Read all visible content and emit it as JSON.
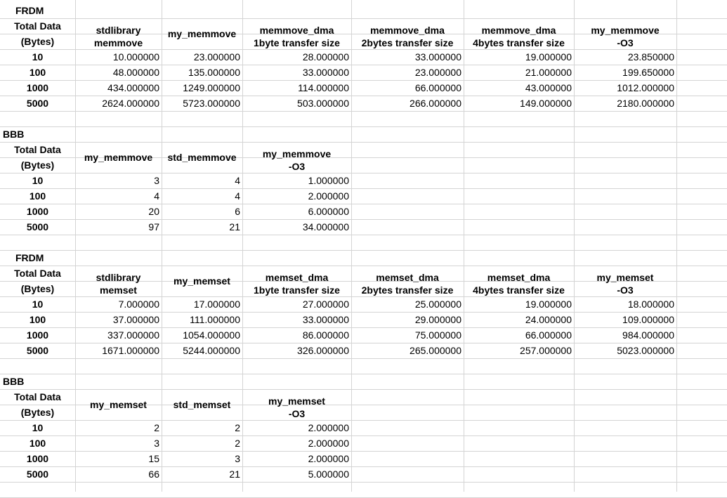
{
  "spreadsheet": {
    "blocks": [
      {
        "label": "FRDM",
        "total_header": [
          "Total Data",
          "(Bytes)"
        ],
        "columns": [
          [
            "stdlibrary",
            "memmove"
          ],
          [
            "my_memmove"
          ],
          [
            "memmove_dma",
            "1byte transfer size"
          ],
          [
            "memmove_dma",
            "2bytes transfer size"
          ],
          [
            "memmove_dma",
            "4bytes transfer size"
          ],
          [
            "my_memmove",
            "-O3"
          ]
        ],
        "rows": [
          {
            "size": "10",
            "values": [
              "10.000000",
              "23.000000",
              "28.000000",
              "33.000000",
              "19.000000",
              "23.850000"
            ]
          },
          {
            "size": "100",
            "values": [
              "48.000000",
              "135.000000",
              "33.000000",
              "23.000000",
              "21.000000",
              "199.650000"
            ]
          },
          {
            "size": "1000",
            "values": [
              "434.000000",
              "1249.000000",
              "114.000000",
              "66.000000",
              "43.000000",
              "1012.000000"
            ]
          },
          {
            "size": "5000",
            "values": [
              "2624.000000",
              "5723.000000",
              "503.000000",
              "266.000000",
              "149.000000",
              "2180.000000"
            ]
          }
        ]
      },
      {
        "label": "BBB",
        "total_header": [
          "Total Data",
          "(Bytes)"
        ],
        "columns": [
          [
            "my_memmove"
          ],
          [
            "std_memmove"
          ],
          [
            "my_memmove",
            "-O3"
          ]
        ],
        "rows": [
          {
            "size": "10",
            "values": [
              "3",
              "4",
              "1.000000"
            ]
          },
          {
            "size": "100",
            "values": [
              "4",
              "4",
              "2.000000"
            ]
          },
          {
            "size": "1000",
            "values": [
              "20",
              "6",
              "6.000000"
            ]
          },
          {
            "size": "5000",
            "values": [
              "97",
              "21",
              "34.000000"
            ]
          }
        ]
      },
      {
        "label": "FRDM",
        "total_header": [
          "Total Data",
          "(Bytes)"
        ],
        "columns": [
          [
            "stdlibrary",
            "memset"
          ],
          [
            "my_memset"
          ],
          [
            "memset_dma",
            "1byte transfer size"
          ],
          [
            "memset_dma",
            "2bytes transfer size"
          ],
          [
            "memset_dma",
            "4bytes transfer size"
          ],
          [
            "my_memset",
            "-O3"
          ]
        ],
        "rows": [
          {
            "size": "10",
            "values": [
              "7.000000",
              "17.000000",
              "27.000000",
              "25.000000",
              "19.000000",
              "18.000000"
            ]
          },
          {
            "size": "100",
            "values": [
              "37.000000",
              "111.000000",
              "33.000000",
              "29.000000",
              "24.000000",
              "109.000000"
            ]
          },
          {
            "size": "1000",
            "values": [
              "337.000000",
              "1054.000000",
              "86.000000",
              "75.000000",
              "66.000000",
              "984.000000"
            ]
          },
          {
            "size": "5000",
            "values": [
              "1671.000000",
              "5244.000000",
              "326.000000",
              "265.000000",
              "257.000000",
              "5023.000000"
            ]
          }
        ]
      },
      {
        "label": "BBB",
        "total_header": [
          "Total Data",
          "(Bytes)"
        ],
        "columns": [
          [
            "my_memset"
          ],
          [
            "std_memset"
          ],
          [
            "my_memset",
            "-O3"
          ]
        ],
        "rows": [
          {
            "size": "10",
            "values": [
              "2",
              "2",
              "2.000000"
            ]
          },
          {
            "size": "100",
            "values": [
              "3",
              "2",
              "2.000000"
            ]
          },
          {
            "size": "1000",
            "values": [
              "15",
              "3",
              "2.000000"
            ]
          },
          {
            "size": "5000",
            "values": [
              "66",
              "21",
              "5.000000"
            ]
          }
        ]
      }
    ]
  }
}
